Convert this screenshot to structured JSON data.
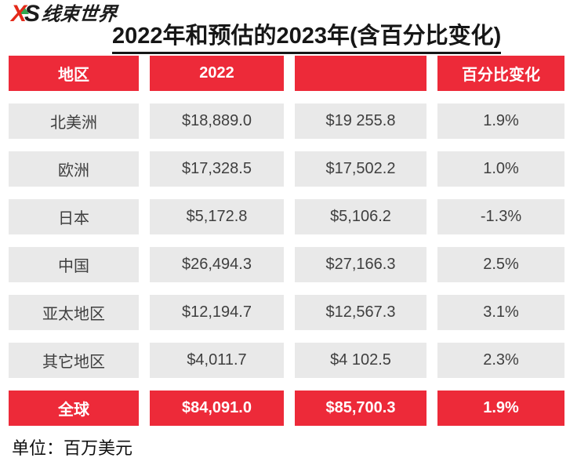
{
  "logo": {
    "x_glyph": "X",
    "s_glyph": "S",
    "brand_text": "线束世界",
    "accent_red": "#e42919",
    "accent_green": "#2fa84f"
  },
  "title": "2022年和预估的2023年(含百分比变化)",
  "table": {
    "headers": [
      "地区",
      "2022",
      "",
      "百分比变化"
    ],
    "rows": [
      {
        "region": "北美洲",
        "y2022": "$18,889.0",
        "y2023": "$19 255.8",
        "pct": "1.9%"
      },
      {
        "region": "欧洲",
        "y2022": "$17,328.5",
        "y2023": "$17,502.2",
        "pct": "1.0%"
      },
      {
        "region": "日本",
        "y2022": "$5,172.8",
        "y2023": "$5,106.2",
        "pct": "-1.3%"
      },
      {
        "region": "中国",
        "y2022": "$26,494.3",
        "y2023": "$27,166.3",
        "pct": "2.5%"
      },
      {
        "region": "亚太地区",
        "y2022": "$12,194.7",
        "y2023": "$12,567.3",
        "pct": "3.1%"
      },
      {
        "region": "其它地区",
        "y2022": "$4,011.7",
        "y2023": "$4 102.5",
        "pct": "2.3%"
      }
    ],
    "total_row": {
      "region": "全球",
      "y2022": "$84,091.0",
      "y2023": "$85,700.3",
      "pct": "1.9%"
    }
  },
  "footer": {
    "unit_note": "单位：百万美元"
  },
  "colors": {
    "accent_red": "#ed2a39",
    "cell_gray": "#e9e9e9",
    "cell_text": "#3f3f3f",
    "header_text": "#ffffff"
  },
  "chart_data": {
    "type": "table",
    "title": "2022年和预估的2023年(含百分比变化)",
    "columns": [
      "地区",
      "2022",
      "",
      "百分比变化"
    ],
    "rows": [
      [
        "北美洲",
        18889.0,
        19255.8,
        "1.9%"
      ],
      [
        "欧洲",
        17328.5,
        17502.2,
        "1.0%"
      ],
      [
        "日本",
        5172.8,
        5106.2,
        "-1.3%"
      ],
      [
        "中国",
        26494.3,
        27166.3,
        "2.5%"
      ],
      [
        "亚太地区",
        12194.7,
        12567.3,
        "3.1%"
      ],
      [
        "其它地区",
        4011.7,
        4102.5,
        "2.3%"
      ],
      [
        "全球",
        84091.0,
        85700.3,
        "1.9%"
      ]
    ],
    "unit": "百万美元",
    "notes": "third column header cell is blank in the image; total row highlighted red"
  }
}
